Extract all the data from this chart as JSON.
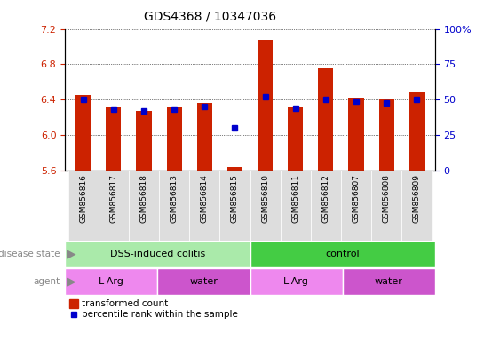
{
  "title": "GDS4368 / 10347036",
  "samples": [
    "GSM856816",
    "GSM856817",
    "GSM856818",
    "GSM856813",
    "GSM856814",
    "GSM856815",
    "GSM856810",
    "GSM856811",
    "GSM856812",
    "GSM856807",
    "GSM856808",
    "GSM856809"
  ],
  "red_values": [
    6.45,
    6.32,
    6.27,
    6.31,
    6.36,
    5.64,
    7.08,
    6.31,
    6.75,
    6.42,
    6.41,
    6.48
  ],
  "blue_values": [
    50,
    43,
    42,
    43,
    45,
    30,
    52,
    44,
    50,
    49,
    48,
    50
  ],
  "ylim_left": [
    5.6,
    7.2
  ],
  "ylim_right": [
    0,
    100
  ],
  "yticks_left": [
    5.6,
    6.0,
    6.4,
    6.8,
    7.2
  ],
  "yticks_right": [
    0,
    25,
    50,
    75,
    100
  ],
  "ytick_labels_right": [
    "0",
    "25",
    "50",
    "75",
    "100%"
  ],
  "disease_state_groups": [
    {
      "label": "DSS-induced colitis",
      "start": 0,
      "end": 6,
      "color": "#aaeaaa"
    },
    {
      "label": "control",
      "start": 6,
      "end": 12,
      "color": "#44cc44"
    }
  ],
  "agent_groups": [
    {
      "label": "L-Arg",
      "start": 0,
      "end": 3,
      "color": "#ee88ee"
    },
    {
      "label": "water",
      "start": 3,
      "end": 6,
      "color": "#cc55cc"
    },
    {
      "label": "L-Arg",
      "start": 6,
      "end": 9,
      "color": "#ee88ee"
    },
    {
      "label": "water",
      "start": 9,
      "end": 12,
      "color": "#cc55cc"
    }
  ],
  "bar_color": "#cc2200",
  "dot_color": "#0000cc",
  "bar_width": 0.5,
  "grid_color": "#000000",
  "background_color": "#ffffff",
  "label_color_left": "#cc2200",
  "label_color_right": "#0000cc",
  "xtick_bg": "#dddddd",
  "row_label_color": "#888888",
  "arrow_color": "#888888"
}
